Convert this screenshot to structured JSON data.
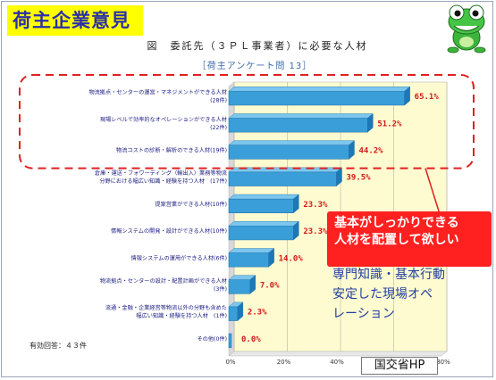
{
  "header": {
    "title": "荷主企業意見"
  },
  "chart_data": {
    "type": "bar",
    "orientation": "horizontal",
    "title": "図　委託先（３ＰＬ事業者）に必要な人材",
    "subtitle": "［荷主アンケート問 13］",
    "categories": [
      [
        "物流拠点・センターの運営・マネジメントができる人材",
        "(28件)"
      ],
      [
        "現場レベルで効率的なオペレーションができる人材",
        "(22件)"
      ],
      [
        "物流コストの診断・解析のできる人材(19件)"
      ],
      [
        "倉庫・運送・フォワーディング（輸出入）業務等物流",
        "分野における幅広い知識・経験を持つ人材　(17件)"
      ],
      [
        "提案営業ができる人材(10件)"
      ],
      [
        "情報システムの開発・設計ができる人材(10件)"
      ],
      [
        "情報システムの運用ができる人材(6件)"
      ],
      [
        "物流拠点・センターの設計・配置計画ができる人材",
        "(3件)"
      ],
      [
        "流通・金融・企業経営等物流以外の分野も含めた",
        "幅広い知識・経験を持つ人材　(1件)"
      ],
      [
        "その他(0件)"
      ]
    ],
    "values": [
      65.1,
      51.2,
      44.2,
      39.5,
      23.3,
      23.3,
      14.0,
      7.0,
      2.3,
      0.0
    ],
    "value_labels": [
      "65.1%",
      "51.2%",
      "44.2%",
      "39.5%",
      "23.3%",
      "23.3%",
      "14.0%",
      "7.0%",
      "2.3%",
      "0.0%"
    ],
    "xlim": [
      0,
      80
    ],
    "xticks": [
      "0%",
      "20%",
      "40%",
      "60%",
      "80%"
    ],
    "grid": true,
    "bar_color": "#3a9fd8",
    "plot_color": "#fffbd0",
    "highlight_color": "#e02020"
  },
  "note": "有効回答：４３件",
  "callout": {
    "lines": [
      "基本がしっかりできる",
      "人材を配置して欲しい"
    ]
  },
  "comment": {
    "lines": [
      "専門知識・基本行動",
      "安定した現場オペ",
      "レーション"
    ]
  },
  "source": "国交省HP"
}
